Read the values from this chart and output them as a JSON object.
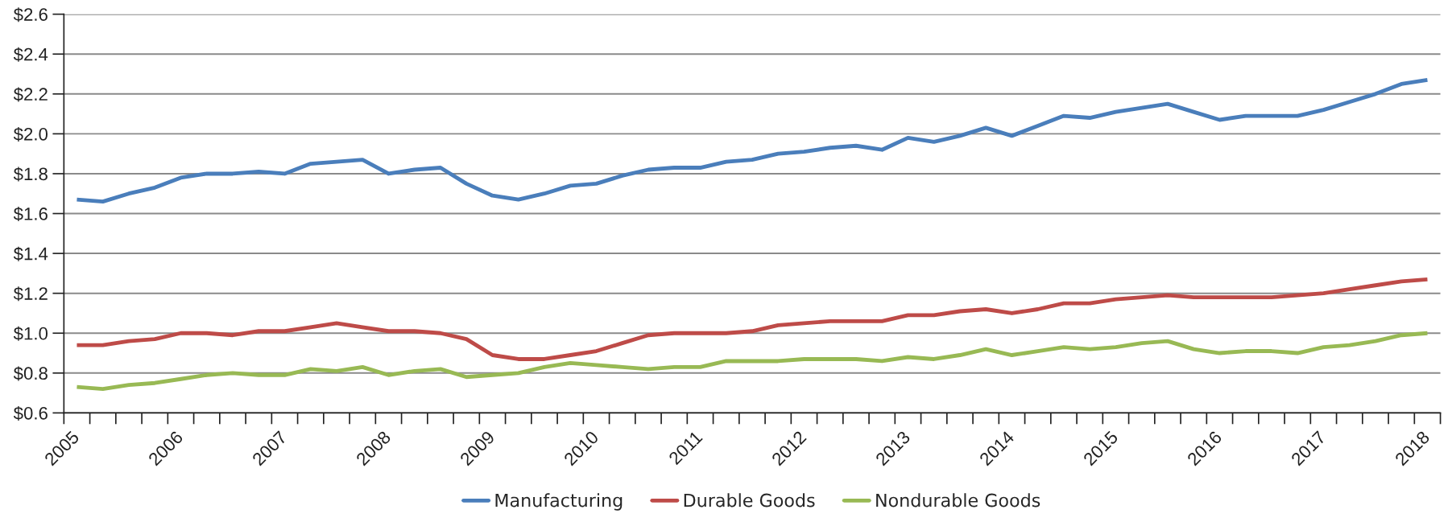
{
  "chart_data": {
    "type": "line",
    "categories": [
      "2005",
      null,
      null,
      null,
      "2006",
      null,
      null,
      null,
      "2007",
      null,
      null,
      null,
      "2008",
      null,
      null,
      null,
      "2009",
      null,
      null,
      null,
      "2010",
      null,
      null,
      null,
      "2011",
      null,
      null,
      null,
      "2012",
      null,
      null,
      null,
      "2013",
      null,
      null,
      null,
      "2014",
      null,
      null,
      null,
      "2015",
      null,
      null,
      null,
      "2016",
      null,
      null,
      null,
      "2017",
      null,
      null,
      null,
      "2018"
    ],
    "series": [
      {
        "name": "Manufacturing",
        "color": "#4a7ebb",
        "values": [
          1.67,
          1.66,
          1.7,
          1.73,
          1.78,
          1.8,
          1.8,
          1.81,
          1.8,
          1.85,
          1.86,
          1.87,
          1.8,
          1.82,
          1.83,
          1.75,
          1.69,
          1.67,
          1.7,
          1.74,
          1.75,
          1.79,
          1.82,
          1.83,
          1.83,
          1.86,
          1.87,
          1.9,
          1.91,
          1.93,
          1.94,
          1.92,
          1.98,
          1.96,
          1.99,
          2.03,
          1.99,
          2.04,
          2.09,
          2.08,
          2.11,
          2.13,
          2.15,
          2.11,
          2.07,
          2.09,
          2.09,
          2.09,
          2.12,
          2.16,
          2.2,
          2.25,
          2.27
        ]
      },
      {
        "name": "Durable Goods",
        "color": "#be4b48",
        "values": [
          0.94,
          0.94,
          0.96,
          0.97,
          1.0,
          1.0,
          0.99,
          1.01,
          1.01,
          1.03,
          1.05,
          1.03,
          1.01,
          1.01,
          1.0,
          0.97,
          0.89,
          0.87,
          0.87,
          0.89,
          0.91,
          0.95,
          0.99,
          1.0,
          1.0,
          1.0,
          1.01,
          1.04,
          1.05,
          1.06,
          1.06,
          1.06,
          1.09,
          1.09,
          1.11,
          1.12,
          1.1,
          1.12,
          1.15,
          1.15,
          1.17,
          1.18,
          1.19,
          1.18,
          1.18,
          1.18,
          1.18,
          1.19,
          1.2,
          1.22,
          1.24,
          1.26,
          1.27
        ]
      },
      {
        "name": "Nondurable Goods",
        "color": "#98b954",
        "values": [
          0.73,
          0.72,
          0.74,
          0.75,
          0.77,
          0.79,
          0.8,
          0.79,
          0.79,
          0.82,
          0.81,
          0.83,
          0.79,
          0.81,
          0.82,
          0.78,
          0.79,
          0.8,
          0.83,
          0.85,
          0.84,
          0.83,
          0.82,
          0.83,
          0.83,
          0.86,
          0.86,
          0.86,
          0.87,
          0.87,
          0.87,
          0.86,
          0.88,
          0.87,
          0.89,
          0.92,
          0.89,
          0.91,
          0.93,
          0.92,
          0.93,
          0.95,
          0.96,
          0.92,
          0.9,
          0.91,
          0.91,
          0.9,
          0.93,
          0.94,
          0.96,
          0.99,
          1.0
        ]
      }
    ],
    "ylim": [
      0.6,
      2.6
    ],
    "yticks": [
      {
        "value": 0.6,
        "label": "$0.6"
      },
      {
        "value": 0.8,
        "label": "$0.8"
      },
      {
        "value": 1.0,
        "label": "$1.0"
      },
      {
        "value": 1.2,
        "label": "$1.2"
      },
      {
        "value": 1.4,
        "label": "$1.4"
      },
      {
        "value": 1.6,
        "label": "$1.6"
      },
      {
        "value": 1.8,
        "label": "$1.8"
      },
      {
        "value": 2.0,
        "label": "$2.0"
      },
      {
        "value": 2.2,
        "label": "$2.2"
      },
      {
        "value": 2.4,
        "label": "$2.4"
      },
      {
        "value": 2.6,
        "label": "$2.6"
      }
    ],
    "grid": "y",
    "legend": "bottom",
    "line_style": "solid"
  }
}
